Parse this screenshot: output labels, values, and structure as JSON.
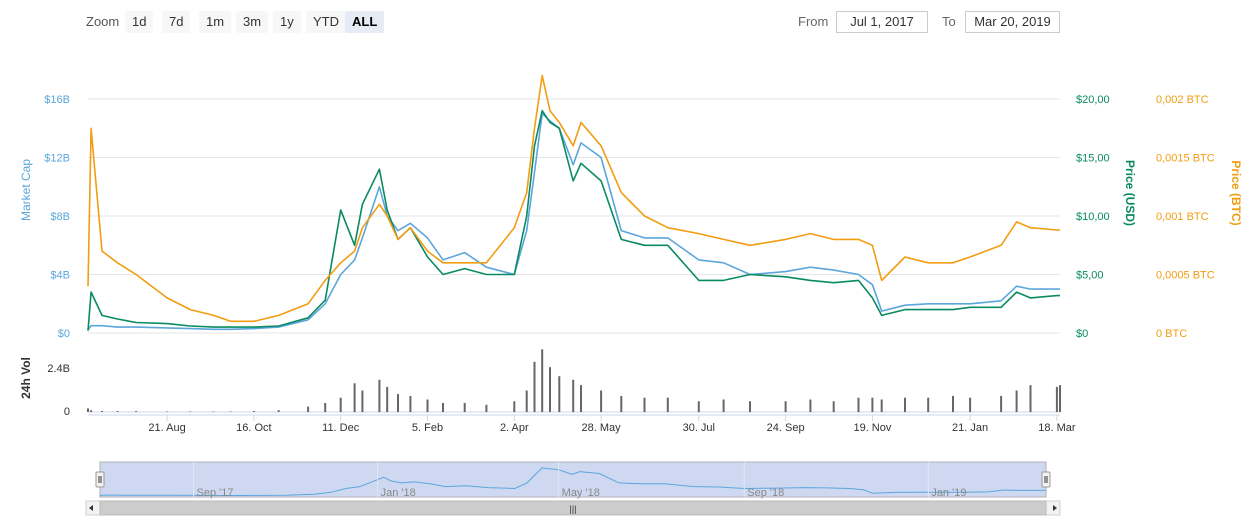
{
  "zoom": {
    "label": "Zoom",
    "buttons": [
      "1d",
      "7d",
      "1m",
      "3m",
      "1y",
      "YTD",
      "ALL"
    ],
    "active": "ALL"
  },
  "range": {
    "from_label": "From",
    "from_value": "Jul 1, 2017",
    "to_label": "To",
    "to_value": "Mar 20, 2019"
  },
  "colors": {
    "market_cap": "#5ba6dc",
    "price_usd": "#0a8a62",
    "price_btc": "#f29d11",
    "volume": "#666666",
    "navigator_fill": "#c9d5ef"
  },
  "chart_data": {
    "type": "line",
    "x_start": "2017-07-01",
    "x_end": "2019-03-20",
    "x_ticks": [
      "21. Aug",
      "16. Oct",
      "11. Dec",
      "5. Feb",
      "2. Apr",
      "28. May",
      "30. Jul",
      "24. Sep",
      "19. Nov",
      "21. Jan",
      "18. Mar"
    ],
    "x_tick_dates": [
      "2017-08-21",
      "2017-10-16",
      "2017-12-11",
      "2018-02-05",
      "2018-04-02",
      "2018-05-28",
      "2018-07-30",
      "2018-09-24",
      "2018-11-19",
      "2019-01-21",
      "2019-03-18"
    ],
    "axes": {
      "market_cap": {
        "label": "Market Cap",
        "ticks": [
          "$0",
          "$4B",
          "$8B",
          "$12B",
          "$16B"
        ],
        "range": [
          0,
          16
        ]
      },
      "price_usd": {
        "label": "Price (USD)",
        "ticks": [
          "$0",
          "$5,00",
          "$10,00",
          "$15,00",
          "$20,00"
        ],
        "range": [
          0,
          20
        ]
      },
      "price_btc": {
        "label": "Price (BTC)",
        "ticks": [
          "0 BTC",
          "0,0005 BTC",
          "0,001 BTC",
          "0,0015 BTC",
          "0,002 BTC"
        ],
        "range": [
          0,
          0.002
        ]
      },
      "volume": {
        "label": "24h Vol",
        "ticks": [
          "0",
          "2.4B"
        ],
        "range": [
          0,
          2.4
        ]
      }
    },
    "dates": [
      "2017-07-01",
      "2017-07-03",
      "2017-07-10",
      "2017-07-20",
      "2017-08-01",
      "2017-08-21",
      "2017-09-05",
      "2017-09-20",
      "2017-10-01",
      "2017-10-16",
      "2017-11-01",
      "2017-11-20",
      "2017-12-01",
      "2017-12-11",
      "2017-12-20",
      "2017-12-25",
      "2018-01-05",
      "2018-01-10",
      "2018-01-17",
      "2018-01-25",
      "2018-02-05",
      "2018-02-15",
      "2018-03-01",
      "2018-03-15",
      "2018-04-02",
      "2018-04-10",
      "2018-04-15",
      "2018-04-20",
      "2018-04-25",
      "2018-05-01",
      "2018-05-10",
      "2018-05-15",
      "2018-05-28",
      "2018-06-10",
      "2018-06-25",
      "2018-07-10",
      "2018-07-30",
      "2018-08-15",
      "2018-09-01",
      "2018-09-24",
      "2018-10-10",
      "2018-10-25",
      "2018-11-10",
      "2018-11-19",
      "2018-11-25",
      "2018-12-10",
      "2018-12-25",
      "2019-01-10",
      "2019-01-21",
      "2019-02-10",
      "2019-02-20",
      "2019-03-01",
      "2019-03-18",
      "2019-03-20"
    ],
    "series": [
      {
        "name": "Market Cap",
        "axis": "market_cap",
        "unit": "B USD",
        "values": [
          0.2,
          0.5,
          0.5,
          0.4,
          0.4,
          0.35,
          0.3,
          0.25,
          0.25,
          0.3,
          0.4,
          0.9,
          2.0,
          4.0,
          5.0,
          6.5,
          10.0,
          8.0,
          7.0,
          7.5,
          6.5,
          5.0,
          5.5,
          4.5,
          4.0,
          7.0,
          11.0,
          15.0,
          14.5,
          14.0,
          11.5,
          13.0,
          12.0,
          7.0,
          6.5,
          6.5,
          5.0,
          4.8,
          4.0,
          4.2,
          4.5,
          4.3,
          4.0,
          3.3,
          1.5,
          1.9,
          2.0,
          2.0,
          2.0,
          2.2,
          3.2,
          3.0,
          3.0,
          3.0
        ]
      },
      {
        "name": "Price (USD)",
        "axis": "price_usd",
        "values": [
          0.2,
          3.5,
          1.5,
          1.2,
          0.9,
          0.8,
          0.6,
          0.5,
          0.5,
          0.5,
          0.6,
          1.3,
          2.8,
          10.5,
          7.5,
          11.0,
          14.0,
          10.5,
          8.0,
          9.0,
          6.5,
          5.0,
          5.5,
          5.0,
          5.0,
          10.0,
          16.0,
          19.0,
          18.0,
          17.5,
          13.0,
          14.5,
          13.0,
          8.0,
          7.5,
          7.5,
          4.5,
          4.5,
          5.0,
          4.8,
          4.5,
          4.3,
          4.5,
          3.0,
          1.5,
          2.0,
          2.0,
          2.0,
          2.2,
          2.2,
          3.5,
          3.0,
          3.2,
          3.2
        ]
      },
      {
        "name": "Price (BTC)",
        "axis": "price_btc",
        "values": [
          0.0004,
          0.00175,
          0.0007,
          0.0006,
          0.0005,
          0.0003,
          0.0002,
          0.00015,
          0.0001,
          0.0001,
          0.00015,
          0.00025,
          0.00045,
          0.0006,
          0.0007,
          0.0009,
          0.0011,
          0.001,
          0.0008,
          0.0009,
          0.0007,
          0.0006,
          0.0006,
          0.0006,
          0.0009,
          0.0012,
          0.00175,
          0.0022,
          0.0019,
          0.0018,
          0.0016,
          0.0018,
          0.0016,
          0.0012,
          0.001,
          0.0009,
          0.00085,
          0.0008,
          0.00075,
          0.0008,
          0.00085,
          0.0008,
          0.0008,
          0.00075,
          0.00045,
          0.00065,
          0.0006,
          0.0006,
          0.00065,
          0.00075,
          0.00095,
          0.0009,
          0.00088,
          0.00088
        ]
      }
    ],
    "volume": [
      0.2,
      0.1,
      0.05,
      0.05,
      0.05,
      0.03,
      0.03,
      0.03,
      0.03,
      0.05,
      0.1,
      0.3,
      0.5,
      0.8,
      1.6,
      1.2,
      1.8,
      1.4,
      1.0,
      0.9,
      0.7,
      0.5,
      0.5,
      0.4,
      0.6,
      1.2,
      2.8,
      3.5,
      2.5,
      2.0,
      1.8,
      1.5,
      1.2,
      0.9,
      0.8,
      0.8,
      0.6,
      0.7,
      0.6,
      0.6,
      0.7,
      0.6,
      0.8,
      0.8,
      0.7,
      0.8,
      0.8,
      0.9,
      0.8,
      0.9,
      1.2,
      1.5,
      1.4,
      1.5
    ],
    "grid": true,
    "legend": "none"
  },
  "navigator": {
    "labels": [
      "Sep '17",
      "Jan '18",
      "May '18",
      "Sep '18",
      "Jan '19"
    ],
    "label_dates": [
      "2017-09-01",
      "2018-01-01",
      "2018-05-01",
      "2018-09-01",
      "2019-01-01"
    ]
  }
}
